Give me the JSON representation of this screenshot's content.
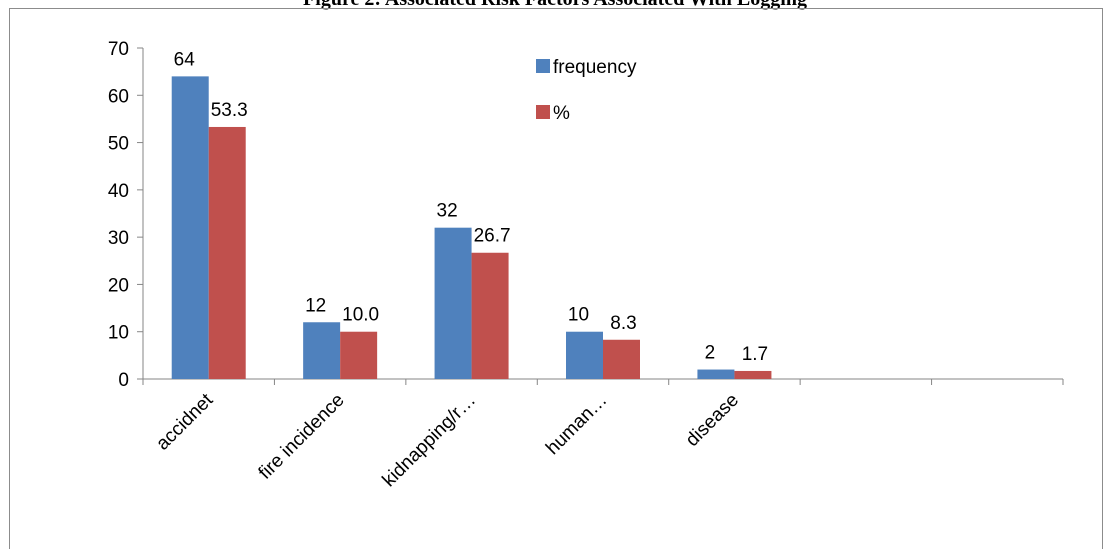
{
  "page": {
    "title": "Figure 2: Associated Risk Factors Associated With Logging"
  },
  "colors": {
    "frequency": "#4f81bd",
    "percent": "#c0504d",
    "axis": "#868686"
  },
  "chart_data": {
    "type": "bar",
    "title": "",
    "xlabel": "",
    "ylabel": "",
    "ylim": [
      0,
      70
    ],
    "yticks": [
      0,
      10,
      20,
      30,
      40,
      50,
      60,
      70
    ],
    "grid": false,
    "legend_position": "top-right",
    "categories": [
      "accidnet",
      "fire incidence",
      "kidnapping/r…",
      "human…",
      "disease",
      "",
      ""
    ],
    "series": [
      {
        "name": "frequency",
        "values": [
          64,
          12,
          32,
          10,
          2,
          null,
          null
        ],
        "labels": [
          "64",
          "12",
          "32",
          "10",
          "2",
          "",
          ""
        ]
      },
      {
        "name": "%",
        "values": [
          53.3,
          10.0,
          26.7,
          8.3,
          1.7,
          null,
          null
        ],
        "labels": [
          "53.3",
          "10.0",
          "26.7",
          "8.3",
          "1.7",
          "",
          ""
        ]
      }
    ]
  }
}
